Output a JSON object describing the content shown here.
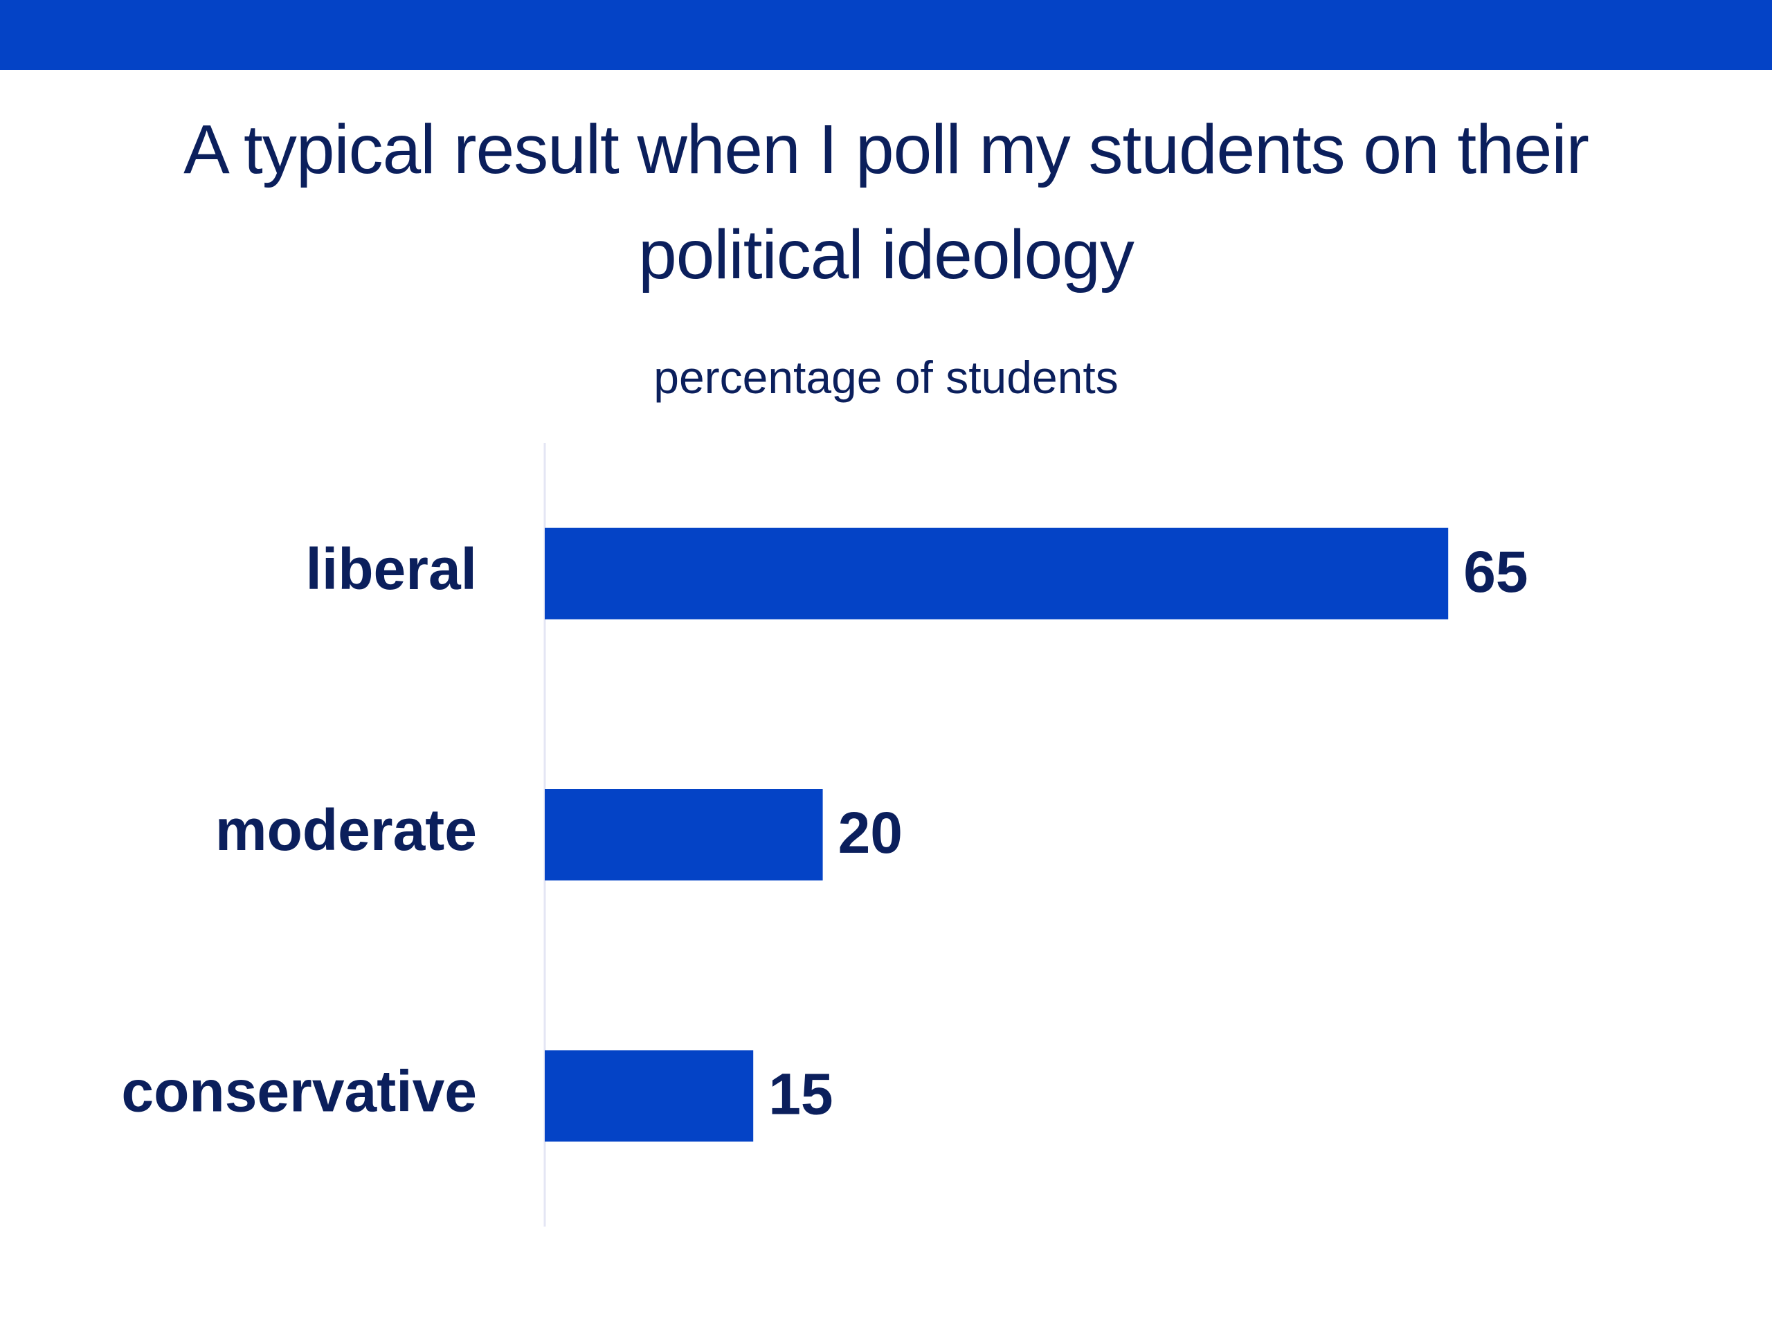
{
  "chart_data": {
    "type": "bar",
    "orientation": "horizontal",
    "title": "A typical result when I poll my students on their political ideology",
    "subtitle": "percentage of students",
    "categories": [
      "liberal",
      "moderate",
      "conservative"
    ],
    "values": [
      65,
      20,
      15
    ],
    "color": "#0443c6"
  }
}
